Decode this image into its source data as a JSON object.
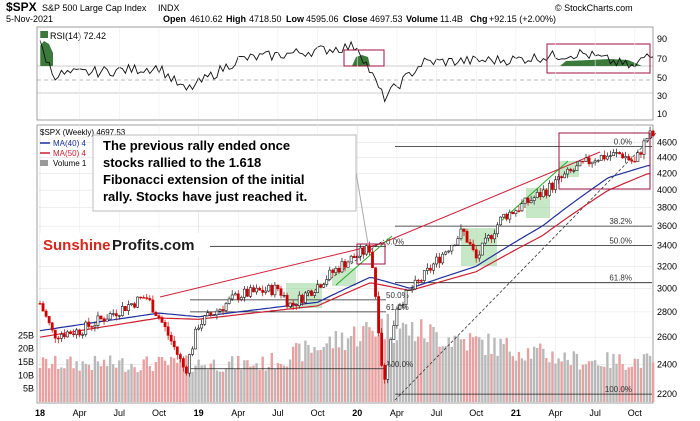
{
  "header": {
    "symbol": "$SPX",
    "name": "S&P 500 Large Cap Index",
    "exchange": "INDX",
    "date": "5-Nov-2021",
    "open_label": "Open",
    "open": "4610.62",
    "high_label": "High",
    "high": "4718.50",
    "low_label": "Low",
    "low": "4595.06",
    "close_label": "Close",
    "close": "4697.53",
    "volume_label": "Volume",
    "volume": "11.4B",
    "change_label": "Chg",
    "change": "+92.15 (+2.00%)",
    "watermark": "© StockCharts.com"
  },
  "rsi_panel": {
    "label": "RSI(14) 72.42",
    "levels": [
      "90",
      "70",
      "50",
      "30",
      "10"
    ]
  },
  "legend": {
    "price": "$SPX (Weekly) 4697.53",
    "ma40": "MA(40) 4",
    "ma50": "MA(50) 4",
    "volume": "Volume 1"
  },
  "callout": {
    "lines": [
      "The previous rally ended once",
      "stocks rallied to the 1.618",
      "Fibonacci extension of the initial",
      "rally. Stocks have just reached it."
    ]
  },
  "brand": {
    "part1": "Sunshine",
    "part2": "Profits.com"
  },
  "fib_labels": {
    "recent": [
      "0.0%",
      "38.2%",
      "50.0%",
      "61.8%",
      "100.0%"
    ],
    "feb2020": [
      "0.0%",
      "50.0%",
      "61.8%",
      "100.0%"
    ]
  },
  "price_axis": [
    "4600",
    "4400",
    "4200",
    "4000",
    "3800",
    "3600",
    "3400",
    "3200",
    "3000",
    "2800",
    "2600",
    "2400",
    "2200"
  ],
  "volume_axis": [
    "25B",
    "20B",
    "15B",
    "10B",
    "5B"
  ],
  "x_axis": [
    "18",
    "Apr",
    "Jul",
    "Oct",
    "19",
    "Apr",
    "Jul",
    "Oct",
    "20",
    "Apr",
    "Jul",
    "Oct",
    "21",
    "Apr",
    "Jul",
    "Oct"
  ],
  "colors": {
    "up": "#1a1a1a",
    "down": "#cc0000",
    "ma40": "#1f2f9e",
    "ma50": "#cc2030",
    "trend": "#d0203a",
    "green_line": "#22aa22",
    "box": "#a01040",
    "zone": "#8fd18f"
  },
  "chart_data": {
    "type": "line",
    "title": "$SPX S&P 500 Large Cap Index INDX",
    "price": {
      "dates": [
        "2018-01",
        "2018-02",
        "2018-04",
        "2018-06",
        "2018-09",
        "2018-10",
        "2018-12",
        "2019-01",
        "2019-04",
        "2019-07",
        "2019-08",
        "2019-10",
        "2019-12",
        "2020-02",
        "2020-03",
        "2020-04",
        "2020-06",
        "2020-09",
        "2020-10",
        "2020-12",
        "2021-01",
        "2021-03",
        "2021-05",
        "2021-07",
        "2021-09",
        "2021-10",
        "2021-11"
      ],
      "close": [
        2870,
        2620,
        2650,
        2760,
        2930,
        2760,
        2350,
        2700,
        2940,
        3000,
        2850,
        3030,
        3230,
        3380,
        2240,
        2850,
        3100,
        3550,
        3270,
        3700,
        3780,
        3970,
        4200,
        4400,
        4450,
        4330,
        4697
      ]
    },
    "series": [
      {
        "name": "MA(40)",
        "dates": [
          "2018-01",
          "2018-10",
          "2019-01",
          "2019-10",
          "2020-02",
          "2020-05",
          "2020-10",
          "2021-03",
          "2021-08",
          "2021-11"
        ],
        "values": [
          2650,
          2790,
          2760,
          2880,
          3100,
          3000,
          3200,
          3600,
          4150,
          4300
        ]
      },
      {
        "name": "MA(50)",
        "dates": [
          "2018-01",
          "2018-10",
          "2019-01",
          "2019-10",
          "2020-02",
          "2020-05",
          "2020-10",
          "2021-03",
          "2021-08",
          "2021-11"
        ],
        "values": [
          2600,
          2750,
          2740,
          2850,
          3050,
          2980,
          3150,
          3500,
          4000,
          4200
        ]
      }
    ],
    "rsi": {
      "dates": [
        "2018-01",
        "2018-02",
        "2018-10",
        "2018-12",
        "2019-04",
        "2020-01",
        "2020-03",
        "2020-06",
        "2021-01",
        "2021-06",
        "2021-10",
        "2021-11"
      ],
      "values": [
        82,
        48,
        56,
        30,
        65,
        80,
        22,
        62,
        65,
        72,
        56,
        72.42
      ]
    },
    "volume": {
      "dates": [
        "2018",
        "2019",
        "2020-03",
        "2021"
      ],
      "values": [
        14,
        14,
        28,
        15
      ]
    },
    "ylim": [
      2150,
      4800
    ],
    "rsi_ylim": [
      0,
      100
    ],
    "volume_ylim": [
      0,
      30
    ],
    "xlim": [
      "2018-01",
      "2021-11"
    ],
    "yscale": "log",
    "grid": true
  }
}
